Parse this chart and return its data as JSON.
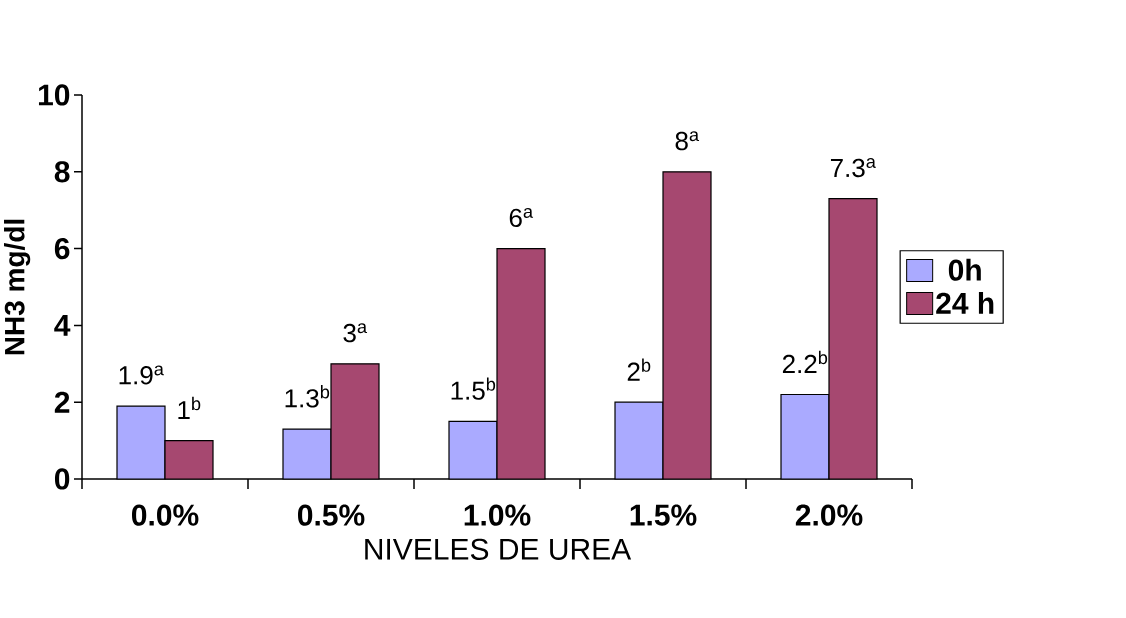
{
  "chart_data": {
    "type": "bar",
    "xlabel": "NIVELES DE UREA",
    "ylabel": "NH3 mg/dl",
    "categories": [
      "0.0%",
      "0.5%",
      "1.0%",
      "1.5%",
      "2.0%"
    ],
    "series": [
      {
        "name": "0h",
        "color": "#aaaaff",
        "values": [
          1.9,
          1.3,
          1.5,
          2,
          2.2
        ],
        "value_labels": [
          "1.9$^{a}$",
          "1.3$^{b}$",
          "1.5$^{b}$",
          "2$^{b}$",
          "2.2$^{b}$"
        ]
      },
      {
        "name": "24 h",
        "color": "#a64870",
        "values": [
          1,
          3,
          6,
          8,
          7.3
        ],
        "value_labels": [
          "1$^{b}$",
          "3$^{a}$",
          "6$^{a}$",
          "8$^{a}$",
          "7.3$^{a}$"
        ]
      }
    ],
    "ylim": [
      0,
      10
    ],
    "yticks": [
      0,
      2,
      4,
      6,
      8,
      10
    ],
    "grid": false,
    "legend": "right"
  }
}
